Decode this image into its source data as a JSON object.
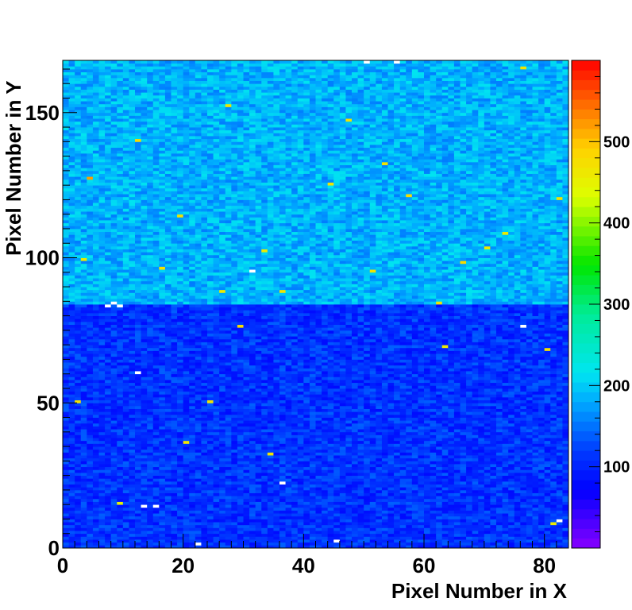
{
  "chart_data": {
    "type": "heatmap",
    "title": "",
    "xlabel": "Pixel Number in X",
    "ylabel": "Pixel Number in Y",
    "x_range": [
      0,
      84
    ],
    "y_range": [
      0,
      168
    ],
    "x_ticks": [
      0,
      20,
      40,
      60,
      80
    ],
    "y_ticks": [
      0,
      50,
      100,
      150
    ],
    "z_range": [
      0,
      600
    ],
    "z_ticks": [
      100,
      200,
      300,
      400,
      500
    ],
    "colormap": "rainbow",
    "grid": false,
    "regions": [
      {
        "name": "lower half",
        "x_range": [
          0,
          84
        ],
        "y_range": [
          0,
          84
        ],
        "typical_value": 110
      },
      {
        "name": "upper half",
        "x_range": [
          0,
          84
        ],
        "y_range": [
          84,
          168
        ],
        "typical_value": 185
      }
    ],
    "hot_pixels": [
      {
        "x": 3,
        "y": 99,
        "value": 460
      },
      {
        "x": 2,
        "y": 50,
        "value": 470
      },
      {
        "x": 4,
        "y": 127,
        "value": 520
      },
      {
        "x": 9,
        "y": 15,
        "value": 450
      },
      {
        "x": 12,
        "y": 140,
        "value": 480
      },
      {
        "x": 16,
        "y": 96,
        "value": 470
      },
      {
        "x": 19,
        "y": 114,
        "value": 470
      },
      {
        "x": 20,
        "y": 36,
        "value": 470
      },
      {
        "x": 24,
        "y": 50,
        "value": 470
      },
      {
        "x": 26,
        "y": 88,
        "value": 460
      },
      {
        "x": 27,
        "y": 152,
        "value": 470
      },
      {
        "x": 29,
        "y": 76,
        "value": 480
      },
      {
        "x": 33,
        "y": 102,
        "value": 460
      },
      {
        "x": 34,
        "y": 32,
        "value": 470
      },
      {
        "x": 36,
        "y": 88,
        "value": 470
      },
      {
        "x": 44,
        "y": 125,
        "value": 470
      },
      {
        "x": 47,
        "y": 147,
        "value": 470
      },
      {
        "x": 51,
        "y": 95,
        "value": 470
      },
      {
        "x": 53,
        "y": 132,
        "value": 470
      },
      {
        "x": 57,
        "y": 121,
        "value": 480
      },
      {
        "x": 62,
        "y": 84,
        "value": 470
      },
      {
        "x": 63,
        "y": 69,
        "value": 460
      },
      {
        "x": 66,
        "y": 98,
        "value": 480
      },
      {
        "x": 70,
        "y": 103,
        "value": 460
      },
      {
        "x": 73,
        "y": 108,
        "value": 460
      },
      {
        "x": 76,
        "y": 165,
        "value": 470
      },
      {
        "x": 80,
        "y": 68,
        "value": 470
      },
      {
        "x": 81,
        "y": 8,
        "value": 460
      },
      {
        "x": 82,
        "y": 120,
        "value": 470
      }
    ],
    "saturated_pixels": [
      {
        "x": 7,
        "y": 83,
        "value": 600
      },
      {
        "x": 8,
        "y": 84,
        "value": 600
      },
      {
        "x": 9,
        "y": 83,
        "value": 600
      },
      {
        "x": 12,
        "y": 60,
        "value": 600
      },
      {
        "x": 13,
        "y": 14,
        "value": 600
      },
      {
        "x": 15,
        "y": 14,
        "value": 600
      },
      {
        "x": 22,
        "y": 1,
        "value": 600
      },
      {
        "x": 31,
        "y": 95,
        "value": 600
      },
      {
        "x": 36,
        "y": 22,
        "value": 600
      },
      {
        "x": 45,
        "y": 2,
        "value": 600
      },
      {
        "x": 50,
        "y": 167,
        "value": 600
      },
      {
        "x": 55,
        "y": 167,
        "value": 600
      },
      {
        "x": 76,
        "y": 76,
        "value": 600
      },
      {
        "x": 82,
        "y": 9,
        "value": 600
      }
    ]
  }
}
